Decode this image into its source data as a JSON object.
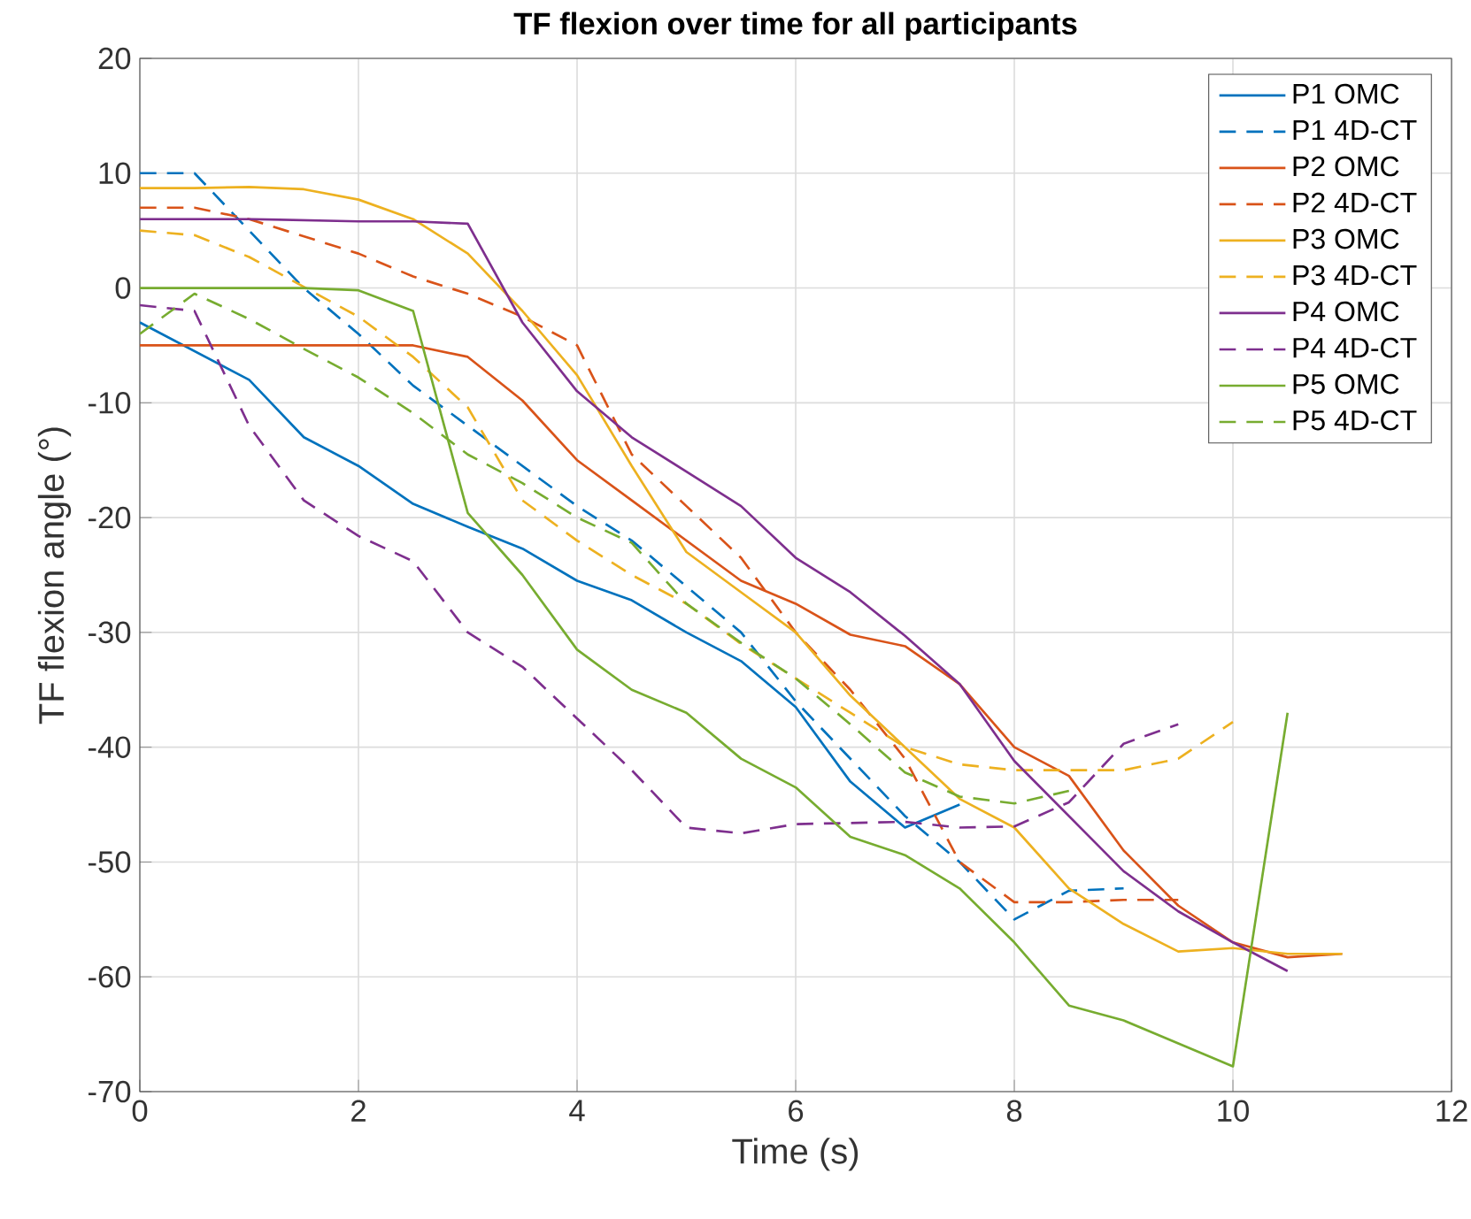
{
  "chart_data": {
    "type": "line",
    "title": "TF flexion over time for all participants",
    "xlabel": "Time (s)",
    "ylabel": "TF flexion angle (°)",
    "xlim": [
      0,
      12
    ],
    "xticks": [
      0,
      2,
      4,
      6,
      8,
      10,
      12
    ],
    "ylim": [
      -70,
      20
    ],
    "yticks": [
      -70,
      -60,
      -50,
      -40,
      -30,
      -20,
      -10,
      0,
      10,
      20
    ],
    "grid": true,
    "legend": "top right",
    "marker": "none",
    "series": [
      {
        "name": "P1 OMC",
        "color": "#0072bd",
        "line_style": "solid",
        "x": [
          0,
          0.5,
          1,
          1.5,
          2,
          2.5,
          3,
          3.5,
          4,
          4.5,
          5,
          5.5,
          6,
          6.5,
          7,
          7.5
        ],
        "values": [
          -3,
          -5.5,
          -8,
          -13,
          -15.5,
          -18.8,
          -20.8,
          -22.7,
          -25.5,
          -27.2,
          -30,
          -32.5,
          -36.5,
          -43,
          -47,
          -45
        ]
      },
      {
        "name": "P1 4D-CT",
        "color": "#0072bd",
        "line_style": "dashed",
        "x": [
          0,
          0.5,
          1,
          1.5,
          2,
          2.5,
          3,
          3.5,
          4,
          4.5,
          5,
          5.5,
          6,
          6.5,
          7,
          7.5,
          8,
          8.5,
          9
        ],
        "values": [
          10,
          10,
          5,
          0,
          -4,
          -8.5,
          -12,
          -15.5,
          -19,
          -22,
          -26,
          -30,
          -36,
          -41,
          -46,
          -50,
          -55,
          -52.5,
          -52.3
        ]
      },
      {
        "name": "P2 OMC",
        "color": "#d95319",
        "line_style": "solid",
        "x": [
          0,
          0.5,
          1,
          1.5,
          2,
          2.5,
          3,
          3.5,
          4,
          4.5,
          5,
          5.5,
          6,
          6.5,
          7,
          7.5,
          8,
          8.5,
          9,
          9.5,
          10,
          10.5,
          11
        ],
        "values": [
          -5,
          -5,
          -5,
          -5,
          -5,
          -5,
          -6,
          -9.8,
          -15,
          -18.5,
          -22,
          -25.5,
          -27.5,
          -30.2,
          -31.2,
          -34.5,
          -40,
          -42.5,
          -49,
          -53.8,
          -57,
          -58.3,
          -58
        ]
      },
      {
        "name": "P2 4D-CT",
        "color": "#d95319",
        "line_style": "dashed",
        "x": [
          0,
          0.5,
          1,
          1.5,
          2,
          2.5,
          3,
          3.5,
          4,
          4.5,
          5,
          5.5,
          6,
          6.5,
          7,
          7.5,
          8,
          8.5,
          9,
          9.5
        ],
        "values": [
          7,
          7,
          6,
          4.5,
          3,
          1,
          -0.5,
          -2.5,
          -5,
          -14.5,
          -19,
          -23.5,
          -30,
          -35,
          -41,
          -50,
          -53.5,
          -53.5,
          -53.3,
          -53.3
        ]
      },
      {
        "name": "P3 OMC",
        "color": "#edb120",
        "line_style": "solid",
        "x": [
          0,
          0.5,
          1,
          1.5,
          2,
          2.5,
          3,
          3.5,
          4,
          4.5,
          5,
          5.5,
          6,
          6.5,
          7,
          7.5,
          8,
          8.5,
          9,
          9.5,
          10,
          10.5,
          11
        ],
        "values": [
          8.7,
          8.7,
          8.8,
          8.6,
          7.7,
          6,
          3,
          -2,
          -7.6,
          -15.5,
          -23,
          -26.5,
          -30,
          -35.5,
          -40,
          -44.5,
          -47,
          -52.3,
          -55.4,
          -57.8,
          -57.5,
          -58,
          -58
        ]
      },
      {
        "name": "P3 4D-CT",
        "color": "#edb120",
        "line_style": "dashed",
        "x": [
          0,
          0.5,
          1,
          1.5,
          2,
          2.5,
          3,
          3.5,
          4,
          4.5,
          5,
          5.5,
          6,
          6.5,
          7,
          7.5,
          8,
          8.5,
          9,
          9.5,
          10
        ],
        "values": [
          5,
          4.6,
          2.7,
          0.1,
          -2.5,
          -6,
          -10.4,
          -18.5,
          -22,
          -25,
          -27.5,
          -31,
          -34,
          -37,
          -40,
          -41.5,
          -42,
          -42,
          -42,
          -41,
          -37.8
        ]
      },
      {
        "name": "P4 OMC",
        "color": "#7e2f8e",
        "line_style": "solid",
        "x": [
          0,
          0.5,
          1,
          1.5,
          2,
          2.5,
          3,
          3.5,
          4,
          4.5,
          5,
          5.5,
          6,
          6.5,
          7,
          7.5,
          8,
          8.5,
          9,
          9.5,
          10,
          10.5
        ],
        "values": [
          6,
          6,
          6,
          5.9,
          5.8,
          5.8,
          5.6,
          -3,
          -9,
          -13,
          -16,
          -19,
          -23.5,
          -26.5,
          -30.3,
          -34.5,
          -41.2,
          -46,
          -50.8,
          -54.3,
          -57,
          -59.5
        ]
      },
      {
        "name": "P4 4D-CT",
        "color": "#7e2f8e",
        "line_style": "dashed",
        "x": [
          0,
          0.5,
          1,
          1.5,
          2,
          2.5,
          3,
          3.5,
          4,
          4.5,
          5,
          5.5,
          6,
          6.5,
          7,
          7.5,
          8,
          8.5,
          9,
          9.5
        ],
        "values": [
          -1.5,
          -2,
          -12,
          -18.5,
          -21.6,
          -23.8,
          -30,
          -33,
          -37.5,
          -42,
          -47,
          -47.5,
          -46.7,
          -46.6,
          -46.5,
          -47,
          -46.9,
          -44.8,
          -39.7,
          -38
        ]
      },
      {
        "name": "P5 OMC",
        "color": "#77ac30",
        "line_style": "solid",
        "x": [
          0,
          0.5,
          1,
          1.5,
          2,
          2.5,
          3,
          3.5,
          4,
          4.5,
          5,
          5.5,
          6,
          6.5,
          7,
          7.5,
          8,
          8.5,
          9,
          9.5,
          10,
          10.5
        ],
        "values": [
          0,
          0,
          0,
          0,
          -0.2,
          -2,
          -19.6,
          -25,
          -31.5,
          -35,
          -37,
          -41,
          -43.5,
          -47.8,
          -49.4,
          -52.3,
          -57,
          -62.5,
          -63.8,
          -65.8,
          -67.8,
          -37
        ]
      },
      {
        "name": "P5 4D-CT",
        "color": "#77ac30",
        "line_style": "dashed",
        "x": [
          0,
          0.5,
          1,
          1.5,
          2,
          2.5,
          3,
          3.5,
          4,
          4.5,
          5,
          5.5,
          6,
          6.5,
          7,
          7.5,
          8,
          8.5
        ],
        "values": [
          -4,
          -0.5,
          -2.7,
          -5.3,
          -7.8,
          -10.9,
          -14.5,
          -17,
          -20,
          -22.2,
          -27.5,
          -30.9,
          -34,
          -38,
          -42.2,
          -44.3,
          -44.9,
          -43.8
        ]
      }
    ]
  }
}
